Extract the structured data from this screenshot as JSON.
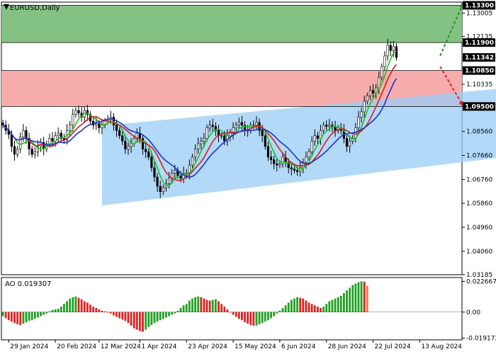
{
  "chart_data": {
    "type": "line",
    "title": "EURUSD,Daily",
    "symbol_title": "EURUSD,Daily",
    "price_axis": {
      "range": [
        1.0318,
        1.1342
      ],
      "ticks": [
        "1.13005",
        "1.12135",
        "1.10335",
        "1.09505",
        "1.08560",
        "1.07660",
        "1.06760",
        "1.05860",
        "1.04960",
        "1.04060",
        "1.03185"
      ],
      "tick_values": [
        1.13005,
        1.12135,
        1.10335,
        1.09505,
        1.0856,
        1.0766,
        1.0676,
        1.0586,
        1.0496,
        1.0406,
        1.03185
      ]
    },
    "date_axis": {
      "labels": [
        "29 Jan 2024",
        "20 Feb 2024",
        "12 Mar 2024",
        "1 Apr 2024",
        "23 Apr 2024",
        "15 May 2024",
        "6 Jun 2024",
        "28 Jun 2024",
        "22 Jul 2024",
        "13 Aug 2024"
      ],
      "label_bar_index": [
        2,
        18,
        33,
        47,
        63,
        79,
        95,
        111,
        127,
        143
      ]
    },
    "levels": [
      {
        "value": 1.133,
        "label": "1.13300",
        "color": "#000000"
      },
      {
        "value": 1.119,
        "label": "1.11900",
        "color": "#000000"
      },
      {
        "value": 1.11342,
        "label": "1.11342",
        "color": "#000000"
      },
      {
        "value": 1.1085,
        "label": "1.10850",
        "color": "#000000"
      },
      {
        "value": 1.095,
        "label": "1.09500",
        "color": "#000000"
      }
    ],
    "zones": [
      {
        "name": "green-zone",
        "from": 1.119,
        "to": 1.133,
        "color": "#7dbf7d"
      },
      {
        "name": "red-zone",
        "from": 1.095,
        "to": 1.1085,
        "color": "#f7a8a8"
      }
    ],
    "channel": {
      "color": "#99ccf5",
      "upper_start": [
        34,
        1.0878
      ],
      "upper_end": [
        158,
        1.1005
      ],
      "lower_start": [
        34,
        1.0578
      ],
      "lower_end": [
        158,
        1.0745
      ]
    },
    "forecast_arrows": [
      {
        "from": [
          150,
          1.114
        ],
        "to": [
          158,
          1.134
        ],
        "color": "#2e8b2e"
      },
      {
        "from": [
          150,
          1.11
        ],
        "to": [
          158,
          1.095
        ],
        "color": "#e02020"
      }
    ],
    "candles_close": [
      1.088,
      1.086,
      1.0845,
      1.08,
      1.077,
      1.079,
      1.0835,
      1.086,
      1.083,
      1.079,
      1.077,
      1.078,
      1.08,
      1.0815,
      1.079,
      1.081,
      1.083,
      1.082,
      1.084,
      1.085,
      1.083,
      1.0825,
      1.086,
      1.088,
      1.092,
      1.0935,
      1.0925,
      1.091,
      1.0935,
      1.092,
      1.0895,
      1.088,
      1.0885,
      1.087,
      1.088,
      1.0895,
      1.09,
      1.091,
      1.088,
      1.086,
      1.084,
      1.082,
      1.079,
      1.08,
      1.081,
      1.083,
      1.085,
      1.083,
      1.079,
      1.078,
      1.076,
      1.072,
      1.0685,
      1.065,
      1.063,
      1.0645,
      1.066,
      1.068,
      1.07,
      1.071,
      1.069,
      1.068,
      1.07,
      1.07,
      1.073,
      1.076,
      1.079,
      1.081,
      1.082,
      1.083,
      1.087,
      1.088,
      1.0875,
      1.086,
      1.084,
      1.084,
      1.082,
      1.084,
      1.085,
      1.087,
      1.088,
      1.089,
      1.088,
      1.086,
      1.086,
      1.088,
      1.088,
      1.089,
      1.086,
      1.084,
      1.08,
      1.076,
      1.075,
      1.0735,
      1.073,
      1.0735,
      1.076,
      1.074,
      1.072,
      1.0715,
      1.071,
      1.0705,
      1.072,
      1.074,
      1.076,
      1.078,
      1.082,
      1.084,
      1.083,
      1.086,
      1.088,
      1.0875,
      1.088,
      1.0875,
      1.086,
      1.087,
      1.086,
      1.083,
      1.08,
      1.082,
      1.083,
      1.087,
      1.091,
      1.093,
      1.097,
      1.099,
      1.101,
      1.1,
      1.102,
      1.106,
      1.11,
      1.114,
      1.118,
      1.116,
      1.1175,
      1.1134
    ],
    "ma_series": [
      {
        "color": "#20c020"
      },
      {
        "color": "#d02020"
      },
      {
        "color": "#2030d0"
      }
    ],
    "oscillator": {
      "label": "AO 0.019307",
      "ticks": [
        "0.022667",
        "0.00",
        "-0.019172"
      ],
      "tick_values": [
        0.022667,
        0.0,
        -0.019172
      ],
      "range": [
        -0.0205,
        0.0255
      ],
      "up_color": "#20a020",
      "down_color": "#e02020",
      "last_bar_color": "#f07830",
      "values": [
        -0.003,
        -0.0045,
        -0.006,
        -0.007,
        -0.008,
        -0.009,
        -0.0095,
        -0.0085,
        -0.0075,
        -0.0065,
        -0.006,
        -0.005,
        -0.004,
        -0.003,
        -0.002,
        -0.001,
        0.0005,
        0.0015,
        0.002,
        0.0025,
        0.004,
        0.006,
        0.008,
        0.01,
        0.011,
        0.0115,
        0.0105,
        0.0095,
        0.008,
        0.007,
        0.0055,
        0.004,
        0.003,
        0.002,
        0.001,
        0.0005,
        0.0,
        -0.001,
        -0.0025,
        -0.0035,
        -0.0045,
        -0.0055,
        -0.0065,
        -0.008,
        -0.01,
        -0.012,
        -0.013,
        -0.014,
        -0.0145,
        -0.013,
        -0.011,
        -0.0095,
        -0.008,
        -0.007,
        -0.006,
        -0.005,
        -0.004,
        -0.003,
        -0.002,
        -0.001,
        0.001,
        0.003,
        0.005,
        0.006,
        0.0085,
        0.01,
        0.011,
        0.0115,
        0.011,
        0.01,
        0.009,
        0.0085,
        0.009,
        0.0095,
        0.008,
        0.006,
        0.004,
        0.002,
        0.0,
        -0.002,
        -0.0035,
        -0.005,
        -0.006,
        -0.0075,
        -0.0085,
        -0.0095,
        -0.01,
        -0.01,
        -0.009,
        -0.008,
        -0.007,
        -0.006,
        -0.0045,
        -0.003,
        -0.001,
        0.001,
        0.003,
        0.005,
        0.007,
        0.009,
        0.01,
        0.011,
        0.0105,
        0.01,
        0.0085,
        0.007,
        0.006,
        0.005,
        0.004,
        0.003,
        0.004,
        0.006,
        0.008,
        0.009,
        0.01,
        0.011,
        0.012,
        0.014,
        0.016,
        0.018,
        0.02,
        0.021,
        0.022,
        0.0227,
        0.0225,
        0.0193
      ]
    }
  }
}
